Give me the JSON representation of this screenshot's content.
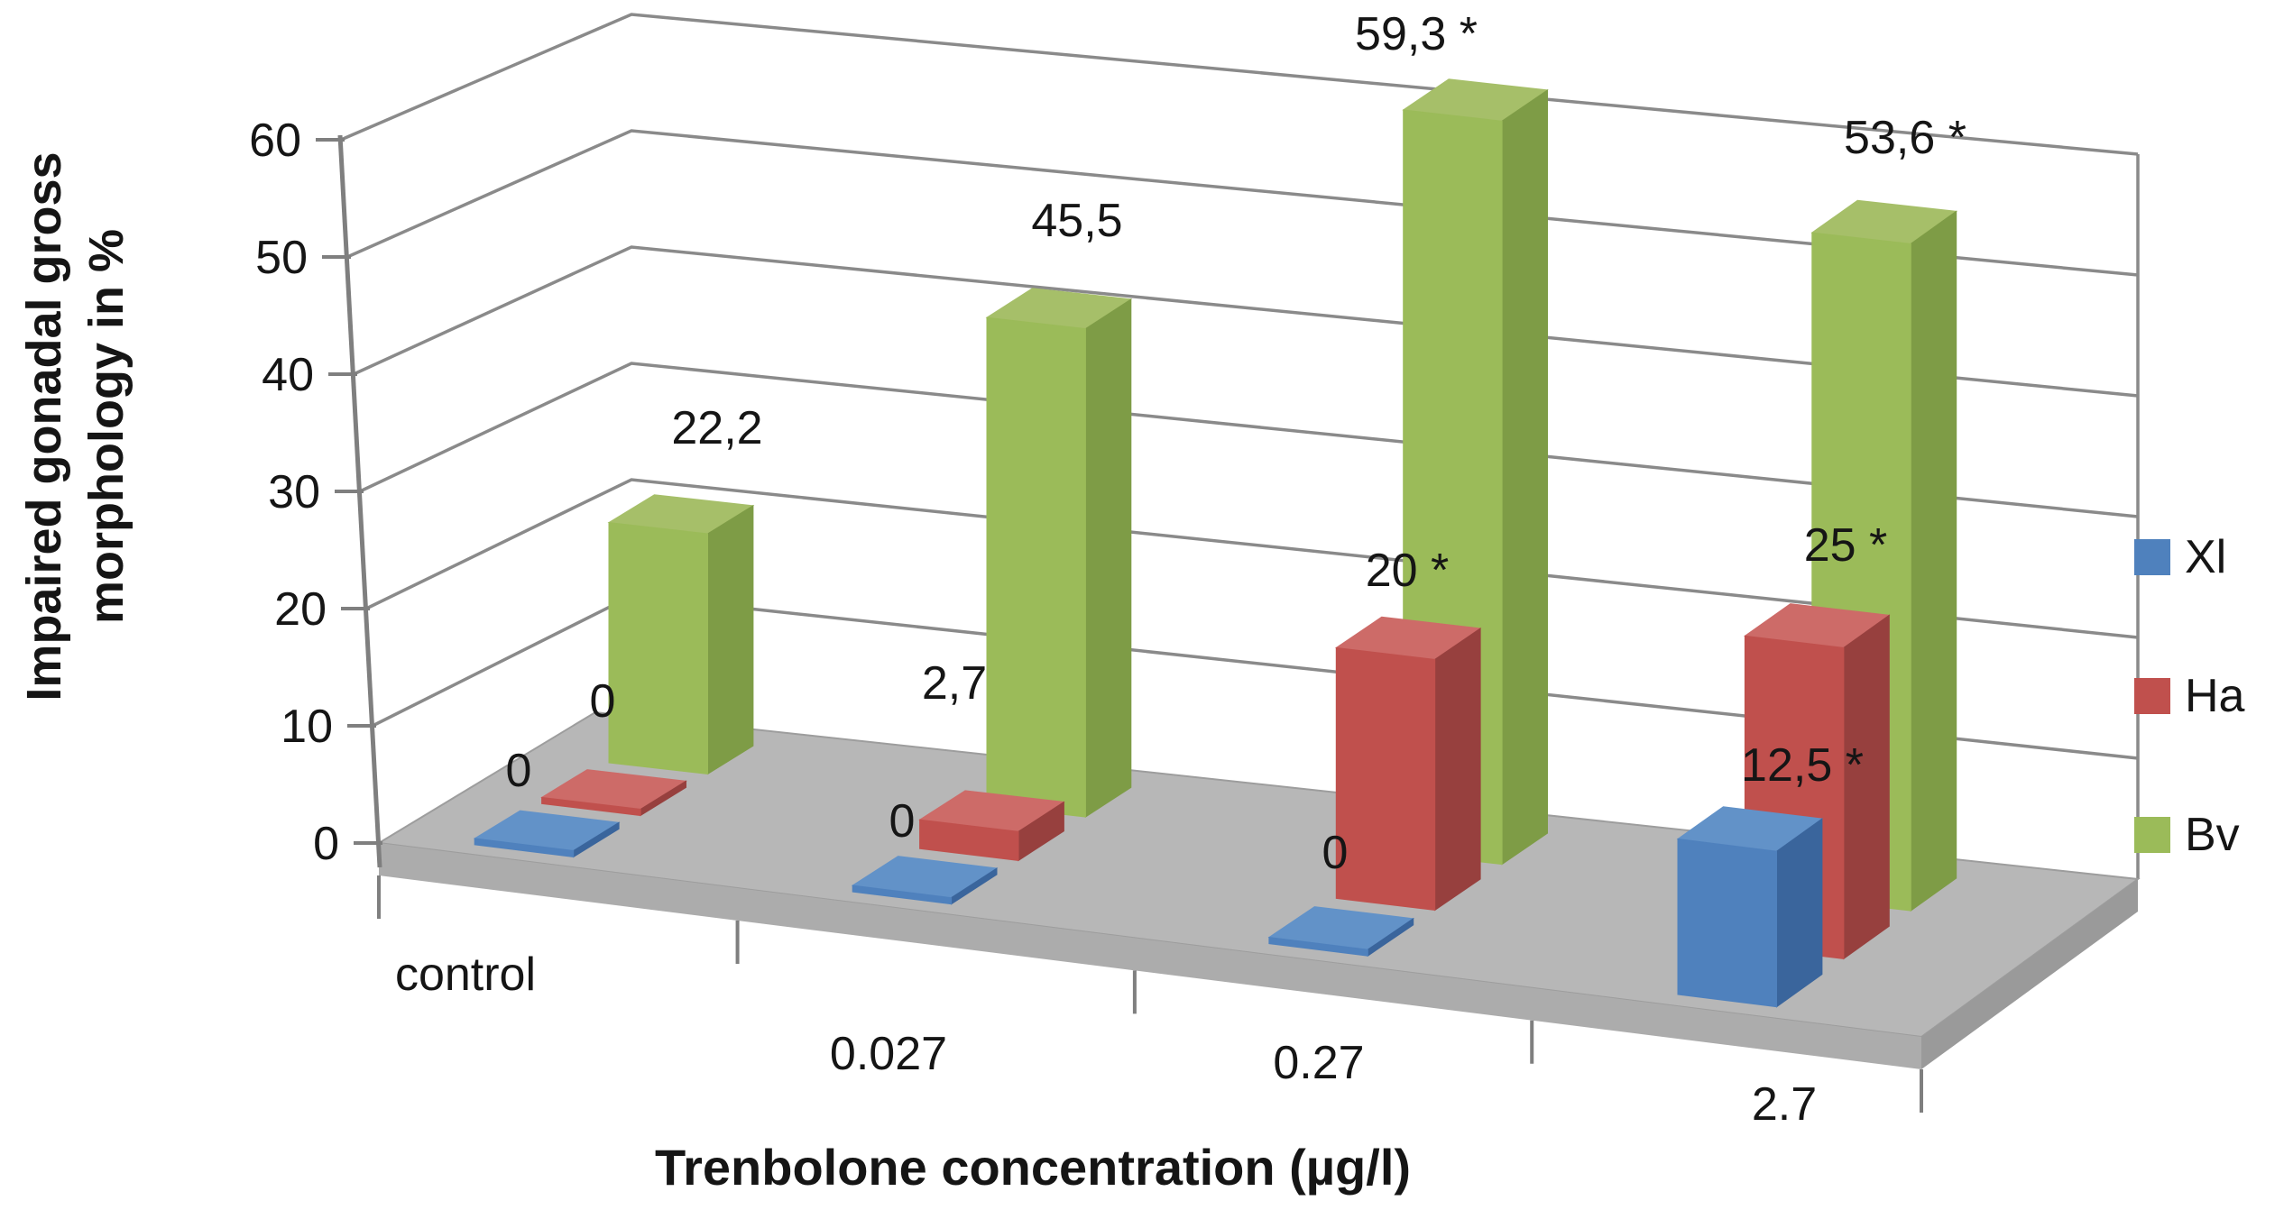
{
  "chart_data": {
    "type": "bar",
    "style": "3d-clustered-column",
    "title": "",
    "categories": [
      "control",
      "0.027",
      "0.27",
      "2.7"
    ],
    "series": [
      {
        "name": "Xl",
        "color": "#4F81BD",
        "values": [
          0,
          0,
          0,
          12.5
        ],
        "point_labels": [
          "0",
          "0",
          "0",
          "12,5 *"
        ]
      },
      {
        "name": "Ha",
        "color": "#C0504D",
        "values": [
          0,
          2.7,
          20,
          25
        ],
        "point_labels": [
          "0",
          "2,7",
          "20 *",
          "25 *"
        ]
      },
      {
        "name": "Bv",
        "color": "#9BBB59",
        "values": [
          22.2,
          45.5,
          59.3,
          53.6
        ],
        "point_labels": [
          "22,2",
          "45,5",
          "59,3 *",
          "53,6 *"
        ]
      }
    ],
    "xlabel": "Trenbolone concentration (µg/l)",
    "ylabel": "Impaired gonadal gross\nmorphology in %",
    "ylim": [
      0,
      60
    ],
    "yticks": [
      0,
      10,
      20,
      30,
      40,
      50,
      60
    ],
    "grid": true,
    "legend_position": "right",
    "background": "#FFFFFF",
    "floor_color": "#B7B7B7",
    "gridline_color": "#8A8A8A"
  }
}
